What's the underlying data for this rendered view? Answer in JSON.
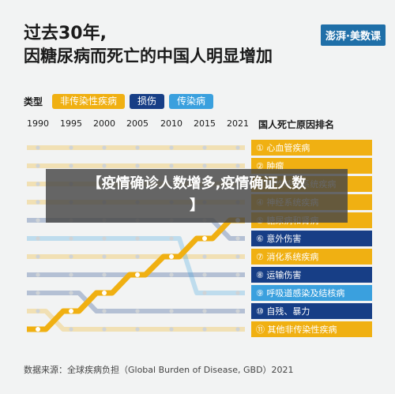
{
  "header": {
    "title_line1": "过去30年,",
    "title_line2": "因糖尿病而死亡的中国人明显增加",
    "brand": "澎湃·美数课"
  },
  "legend": {
    "label": "类型",
    "items": [
      {
        "label": "非传染性疾病",
        "color": "#f0b012"
      },
      {
        "label": "损伤",
        "color": "#173e86"
      },
      {
        "label": "传染病",
        "color": "#3aa0de"
      }
    ]
  },
  "overlay": {
    "line1": "【疫情确诊人数增多,疫情确证人数",
    "line2": "】"
  },
  "source": "数据来源：全球疾病负担（Global Burden of Disease, GBD）2021",
  "chart_data": {
    "type": "bump",
    "title": "国人死亡原因排名",
    "x": [
      "1990",
      "1995",
      "2000",
      "2005",
      "2010",
      "2015",
      "2021"
    ],
    "highlight_series": "糖尿病和肾病",
    "ranks": [
      {
        "rank": 1,
        "label": "① 心血管疾病",
        "type": "非传染性疾病",
        "color": "#f0b012"
      },
      {
        "rank": 2,
        "label": "② 肿瘤",
        "type": "非传染性疾病",
        "color": "#f0b012"
      },
      {
        "rank": 3,
        "label": "③ 慢性呼吸系统疾病",
        "type": "非传染性疾病",
        "color": "#f0b012"
      },
      {
        "rank": 4,
        "label": "④ 神经系统疾病",
        "type": "非传染性疾病",
        "color": "#f0b012"
      },
      {
        "rank": 5,
        "label": "⑤ 糖尿病和肾病",
        "type": "非传染性疾病",
        "color": "#f0b012"
      },
      {
        "rank": 6,
        "label": "⑥ 意外伤害",
        "type": "损伤",
        "color": "#173e86"
      },
      {
        "rank": 7,
        "label": "⑦ 消化系统疾病",
        "type": "非传染性疾病",
        "color": "#f0b012"
      },
      {
        "rank": 8,
        "label": "⑧ 运输伤害",
        "type": "损伤",
        "color": "#173e86"
      },
      {
        "rank": 9,
        "label": "⑨ 呼吸道感染及结核病",
        "type": "传染病",
        "color": "#3aa0de"
      },
      {
        "rank": 10,
        "label": "⑩ 自残、暴力",
        "type": "损伤",
        "color": "#173e86"
      },
      {
        "rank": 11,
        "label": "⑪ 其他非传染性疾病",
        "type": "非传染性疾病",
        "color": "#f0b012"
      }
    ],
    "series": [
      {
        "name": "心血管疾病",
        "type": "非传染性疾病",
        "values": [
          1,
          1,
          1,
          1,
          1,
          1,
          1
        ]
      },
      {
        "name": "肿瘤",
        "type": "非传染性疾病",
        "values": [
          2,
          2,
          2,
          2,
          2,
          2,
          2
        ]
      },
      {
        "name": "慢性呼吸系统疾病",
        "type": "非传染性疾病",
        "values": [
          3,
          3,
          3,
          3,
          3,
          3,
          3
        ]
      },
      {
        "name": "神经系统疾病",
        "type": "非传染性疾病",
        "values": [
          4,
          4,
          4,
          4,
          4,
          4,
          4
        ]
      },
      {
        "name": "糖尿病和肾病",
        "type": "非传染性疾病",
        "values": [
          11,
          10,
          9,
          8,
          7,
          6,
          5
        ]
      },
      {
        "name": "意外伤害",
        "type": "损伤",
        "values": [
          5,
          5,
          5,
          5,
          5,
          5,
          6
        ]
      },
      {
        "name": "消化系统疾病",
        "type": "非传染性疾病",
        "values": [
          7,
          7,
          7,
          7,
          7,
          7,
          7
        ]
      },
      {
        "name": "运输伤害",
        "type": "损伤",
        "values": [
          8,
          8,
          8,
          8,
          8,
          8,
          8
        ]
      },
      {
        "name": "呼吸道感染及结核病",
        "type": "传染病",
        "values": [
          6,
          6,
          6,
          6,
          6,
          9,
          9
        ]
      },
      {
        "name": "自残、暴力",
        "type": "损伤",
        "values": [
          9,
          9,
          10,
          10,
          10,
          10,
          10
        ]
      },
      {
        "name": "其他非传染性疾病",
        "type": "非传染性疾病",
        "values": [
          10,
          11,
          11,
          11,
          11,
          11,
          11
        ]
      }
    ]
  }
}
